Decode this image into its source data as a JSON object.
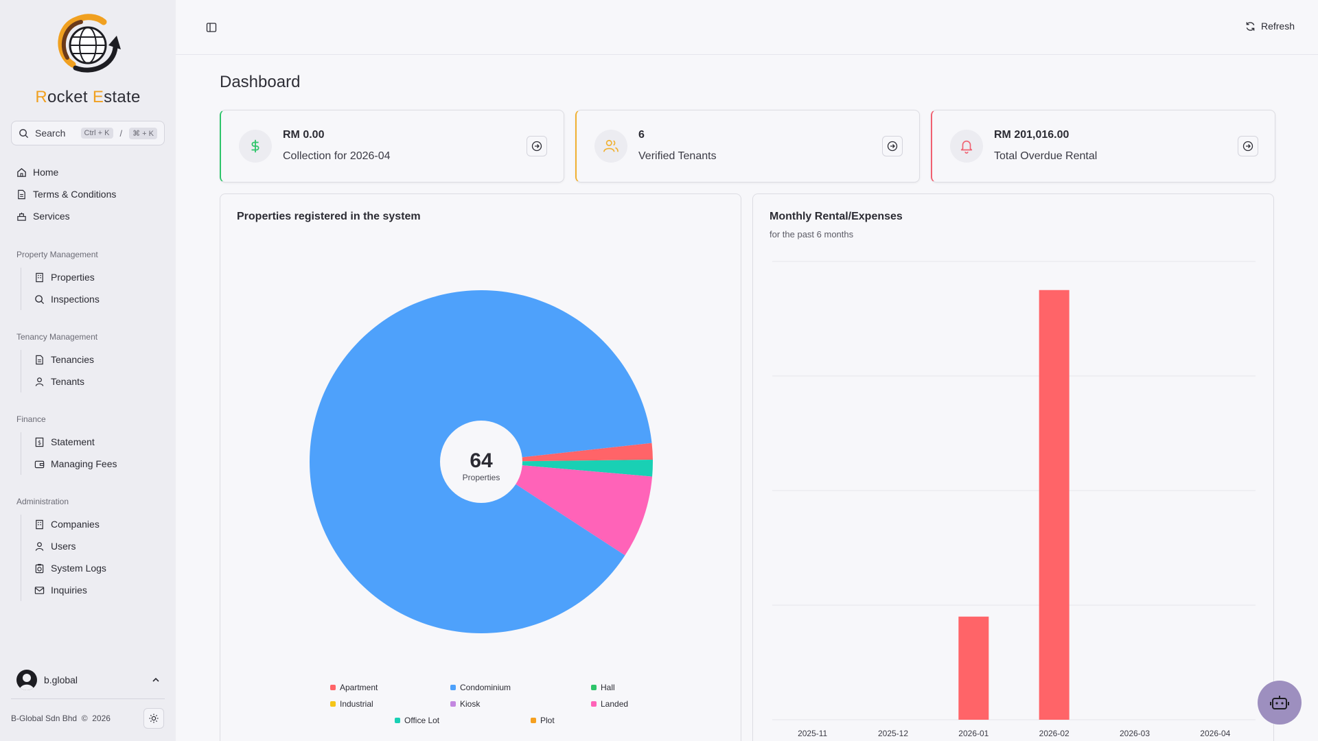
{
  "brand": {
    "first_letter": "R",
    "first_rest": "ocket ",
    "second_letter": "E",
    "second_rest": "state"
  },
  "search": {
    "label": "Search",
    "kbd_win": "Ctrl + K",
    "separator": "/",
    "kbd_mac": "⌘ + K"
  },
  "nav": {
    "top": [
      {
        "label": "Home",
        "icon": "home-icon"
      },
      {
        "label": "Terms & Conditions",
        "icon": "document-icon"
      },
      {
        "label": "Services",
        "icon": "services-icon"
      }
    ],
    "sections": [
      {
        "title": "Property Management",
        "items": [
          {
            "label": "Properties",
            "icon": "building-icon"
          },
          {
            "label": "Inspections",
            "icon": "search-icon"
          }
        ]
      },
      {
        "title": "Tenancy Management",
        "items": [
          {
            "label": "Tenancies",
            "icon": "document-icon"
          },
          {
            "label": "Tenants",
            "icon": "user-icon"
          }
        ]
      },
      {
        "title": "Finance",
        "items": [
          {
            "label": "Statement",
            "icon": "dollar-file-icon"
          },
          {
            "label": "Managing Fees",
            "icon": "wallet-icon"
          }
        ]
      },
      {
        "title": "Administration",
        "items": [
          {
            "label": "Companies",
            "icon": "building-icon"
          },
          {
            "label": "Users",
            "icon": "user-icon"
          },
          {
            "label": "System Logs",
            "icon": "logs-icon"
          },
          {
            "label": "Inquiries",
            "icon": "mail-icon"
          }
        ]
      }
    ]
  },
  "user": {
    "name": "b.global"
  },
  "footer": {
    "company": "B-Global Sdn Bhd",
    "copyright": "©",
    "year": "2026"
  },
  "topbar": {
    "refresh_label": "Refresh"
  },
  "page": {
    "title": "Dashboard"
  },
  "cards": [
    {
      "value": "RM 0.00",
      "label": "Collection for 2026-04",
      "accent": "#2ec46a",
      "icon": "dollar-icon"
    },
    {
      "value": "6",
      "label": "Verified Tenants",
      "accent": "#f0b030",
      "icon": "users-icon"
    },
    {
      "value": "RM 201,016.00",
      "label": "Total Overdue Rental",
      "accent": "#f06070",
      "icon": "bell-icon"
    }
  ],
  "pie_panel": {
    "title": "Properties registered in the system",
    "center_value": "64",
    "center_label": "Properties"
  },
  "bar_panel": {
    "title": "Monthly Rental/Expenses",
    "subtitle": "for the past 6 months"
  },
  "chart_data": [
    {
      "type": "pie",
      "total": 64,
      "slices": [
        {
          "name": "Apartment",
          "value": 1,
          "color": "#ff6468"
        },
        {
          "name": "Condominium",
          "value": 57,
          "color": "#4ea1fb"
        },
        {
          "name": "Hall",
          "value": 0,
          "color": "#2ec46a"
        },
        {
          "name": "Industrial",
          "value": 0,
          "color": "#f5c518"
        },
        {
          "name": "Kiosk",
          "value": 0,
          "color": "#c387e0"
        },
        {
          "name": "Landed",
          "value": 5,
          "color": "#ff63b8"
        },
        {
          "name": "Office Lot",
          "value": 1,
          "color": "#19d0b4"
        },
        {
          "name": "Plot",
          "value": 0,
          "color": "#f5a020"
        }
      ]
    },
    {
      "type": "bar",
      "categories": [
        "2025-11",
        "2025-12",
        "2026-01",
        "2026-02",
        "2026-03",
        "2026-04"
      ],
      "values": [
        0,
        0,
        18000,
        75000,
        0,
        0
      ],
      "color": "#ff6468",
      "ylim": [
        0,
        80000
      ],
      "grid": true
    }
  ]
}
